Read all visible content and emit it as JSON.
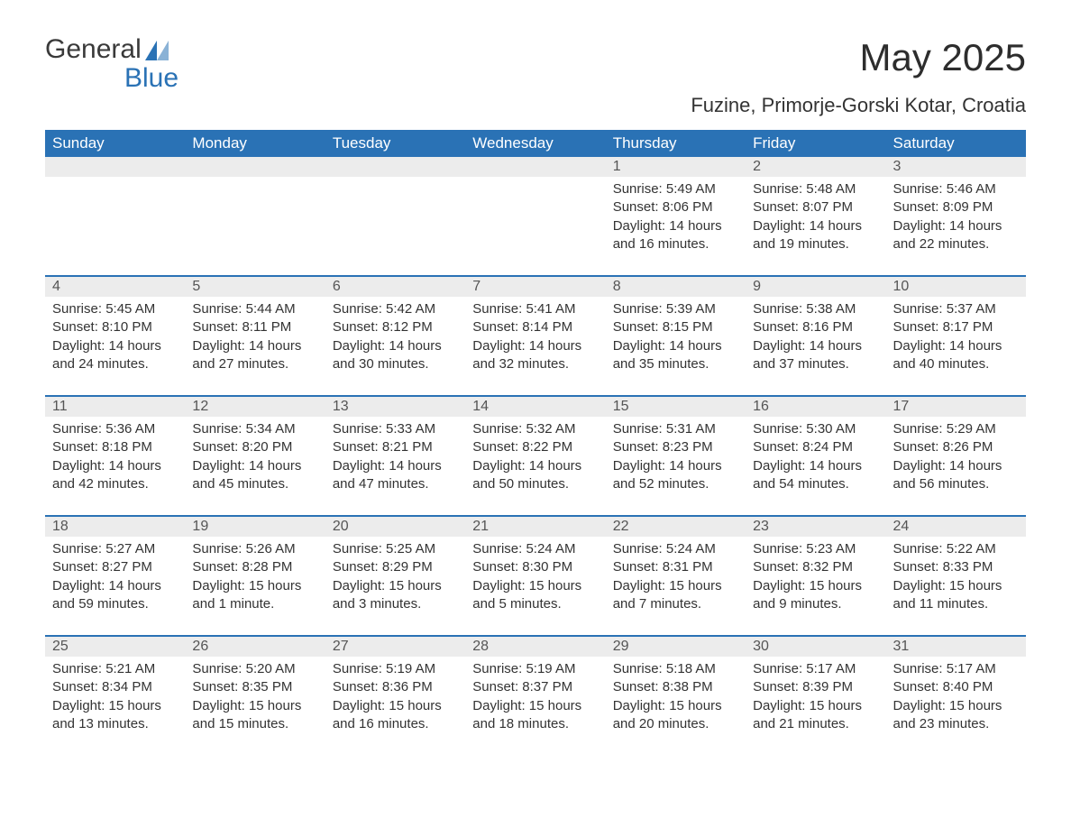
{
  "brand": {
    "word1": "General",
    "word2": "Blue",
    "accent_color": "#2a72b5"
  },
  "title": "May 2025",
  "location": "Fuzine, Primorje-Gorski Kotar, Croatia",
  "colors": {
    "header_bg": "#2a72b5",
    "header_text": "#ffffff",
    "daynum_bg": "#ececec",
    "row_border": "#2a72b5",
    "body_text": "#333333",
    "page_bg": "#ffffff"
  },
  "typography": {
    "title_fontsize": 42,
    "location_fontsize": 22,
    "header_fontsize": 17,
    "cell_fontsize": 15
  },
  "layout": {
    "columns": 7,
    "rows": 5,
    "start_weekday": "Sunday"
  },
  "weekdays": [
    "Sunday",
    "Monday",
    "Tuesday",
    "Wednesday",
    "Thursday",
    "Friday",
    "Saturday"
  ],
  "labels": {
    "sunrise": "Sunrise",
    "sunset": "Sunset",
    "daylight": "Daylight"
  },
  "weeks": [
    [
      null,
      null,
      null,
      null,
      {
        "day": "1",
        "sunrise": "5:49 AM",
        "sunset": "8:06 PM",
        "daylight": "14 hours and 16 minutes."
      },
      {
        "day": "2",
        "sunrise": "5:48 AM",
        "sunset": "8:07 PM",
        "daylight": "14 hours and 19 minutes."
      },
      {
        "day": "3",
        "sunrise": "5:46 AM",
        "sunset": "8:09 PM",
        "daylight": "14 hours and 22 minutes."
      }
    ],
    [
      {
        "day": "4",
        "sunrise": "5:45 AM",
        "sunset": "8:10 PM",
        "daylight": "14 hours and 24 minutes."
      },
      {
        "day": "5",
        "sunrise": "5:44 AM",
        "sunset": "8:11 PM",
        "daylight": "14 hours and 27 minutes."
      },
      {
        "day": "6",
        "sunrise": "5:42 AM",
        "sunset": "8:12 PM",
        "daylight": "14 hours and 30 minutes."
      },
      {
        "day": "7",
        "sunrise": "5:41 AM",
        "sunset": "8:14 PM",
        "daylight": "14 hours and 32 minutes."
      },
      {
        "day": "8",
        "sunrise": "5:39 AM",
        "sunset": "8:15 PM",
        "daylight": "14 hours and 35 minutes."
      },
      {
        "day": "9",
        "sunrise": "5:38 AM",
        "sunset": "8:16 PM",
        "daylight": "14 hours and 37 minutes."
      },
      {
        "day": "10",
        "sunrise": "5:37 AM",
        "sunset": "8:17 PM",
        "daylight": "14 hours and 40 minutes."
      }
    ],
    [
      {
        "day": "11",
        "sunrise": "5:36 AM",
        "sunset": "8:18 PM",
        "daylight": "14 hours and 42 minutes."
      },
      {
        "day": "12",
        "sunrise": "5:34 AM",
        "sunset": "8:20 PM",
        "daylight": "14 hours and 45 minutes."
      },
      {
        "day": "13",
        "sunrise": "5:33 AM",
        "sunset": "8:21 PM",
        "daylight": "14 hours and 47 minutes."
      },
      {
        "day": "14",
        "sunrise": "5:32 AM",
        "sunset": "8:22 PM",
        "daylight": "14 hours and 50 minutes."
      },
      {
        "day": "15",
        "sunrise": "5:31 AM",
        "sunset": "8:23 PM",
        "daylight": "14 hours and 52 minutes."
      },
      {
        "day": "16",
        "sunrise": "5:30 AM",
        "sunset": "8:24 PM",
        "daylight": "14 hours and 54 minutes."
      },
      {
        "day": "17",
        "sunrise": "5:29 AM",
        "sunset": "8:26 PM",
        "daylight": "14 hours and 56 minutes."
      }
    ],
    [
      {
        "day": "18",
        "sunrise": "5:27 AM",
        "sunset": "8:27 PM",
        "daylight": "14 hours and 59 minutes."
      },
      {
        "day": "19",
        "sunrise": "5:26 AM",
        "sunset": "8:28 PM",
        "daylight": "15 hours and 1 minute."
      },
      {
        "day": "20",
        "sunrise": "5:25 AM",
        "sunset": "8:29 PM",
        "daylight": "15 hours and 3 minutes."
      },
      {
        "day": "21",
        "sunrise": "5:24 AM",
        "sunset": "8:30 PM",
        "daylight": "15 hours and 5 minutes."
      },
      {
        "day": "22",
        "sunrise": "5:24 AM",
        "sunset": "8:31 PM",
        "daylight": "15 hours and 7 minutes."
      },
      {
        "day": "23",
        "sunrise": "5:23 AM",
        "sunset": "8:32 PM",
        "daylight": "15 hours and 9 minutes."
      },
      {
        "day": "24",
        "sunrise": "5:22 AM",
        "sunset": "8:33 PM",
        "daylight": "15 hours and 11 minutes."
      }
    ],
    [
      {
        "day": "25",
        "sunrise": "5:21 AM",
        "sunset": "8:34 PM",
        "daylight": "15 hours and 13 minutes."
      },
      {
        "day": "26",
        "sunrise": "5:20 AM",
        "sunset": "8:35 PM",
        "daylight": "15 hours and 15 minutes."
      },
      {
        "day": "27",
        "sunrise": "5:19 AM",
        "sunset": "8:36 PM",
        "daylight": "15 hours and 16 minutes."
      },
      {
        "day": "28",
        "sunrise": "5:19 AM",
        "sunset": "8:37 PM",
        "daylight": "15 hours and 18 minutes."
      },
      {
        "day": "29",
        "sunrise": "5:18 AM",
        "sunset": "8:38 PM",
        "daylight": "15 hours and 20 minutes."
      },
      {
        "day": "30",
        "sunrise": "5:17 AM",
        "sunset": "8:39 PM",
        "daylight": "15 hours and 21 minutes."
      },
      {
        "day": "31",
        "sunrise": "5:17 AM",
        "sunset": "8:40 PM",
        "daylight": "15 hours and 23 minutes."
      }
    ]
  ]
}
